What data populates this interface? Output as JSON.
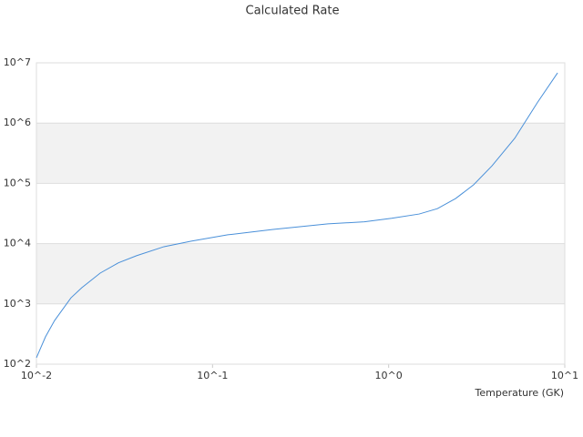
{
  "chart_data": {
    "type": "line",
    "title": "Calculated Rate",
    "x_label": "Temperature (GK)",
    "x_scale": "log",
    "y_scale": "log",
    "grid": true,
    "band_color": "#f2f2f2",
    "xlim": [
      0.01,
      10
    ],
    "ylim": [
      100,
      10000000
    ],
    "xticks": [
      {
        "value": 0.01,
        "label": "10^-2"
      },
      {
        "value": 0.1,
        "label": "10^-1"
      },
      {
        "value": 1,
        "label": "10^0"
      },
      {
        "value": 10,
        "label": "10^1"
      }
    ],
    "yticks": [
      {
        "value": 100,
        "label": "10^2"
      },
      {
        "value": 1000,
        "label": "10^3"
      },
      {
        "value": 10000,
        "label": "10^4"
      },
      {
        "value": 100000,
        "label": "10^5"
      },
      {
        "value": 1000000,
        "label": "10^6"
      },
      {
        "value": 10000000,
        "label": "10^7"
      }
    ],
    "series": [
      {
        "color": "#4a90d9",
        "x": [
          0.01,
          0.01126,
          0.01268,
          0.0157,
          0.0181,
          0.023,
          0.0292,
          0.037,
          0.053,
          0.0757,
          0.122,
          0.221,
          0.452,
          0.728,
          1.04,
          1.49,
          1.89,
          2.4,
          3.04,
          3.86,
          5.2,
          7.0,
          9.1
        ],
        "values": [
          128,
          285,
          530,
          1260,
          1860,
          3240,
          4800,
          6300,
          8900,
          11000,
          14000,
          17200,
          21300,
          23000,
          26300,
          31000,
          38000,
          56000,
          95000,
          195000,
          560000,
          2200000,
          6800000
        ]
      }
    ]
  }
}
